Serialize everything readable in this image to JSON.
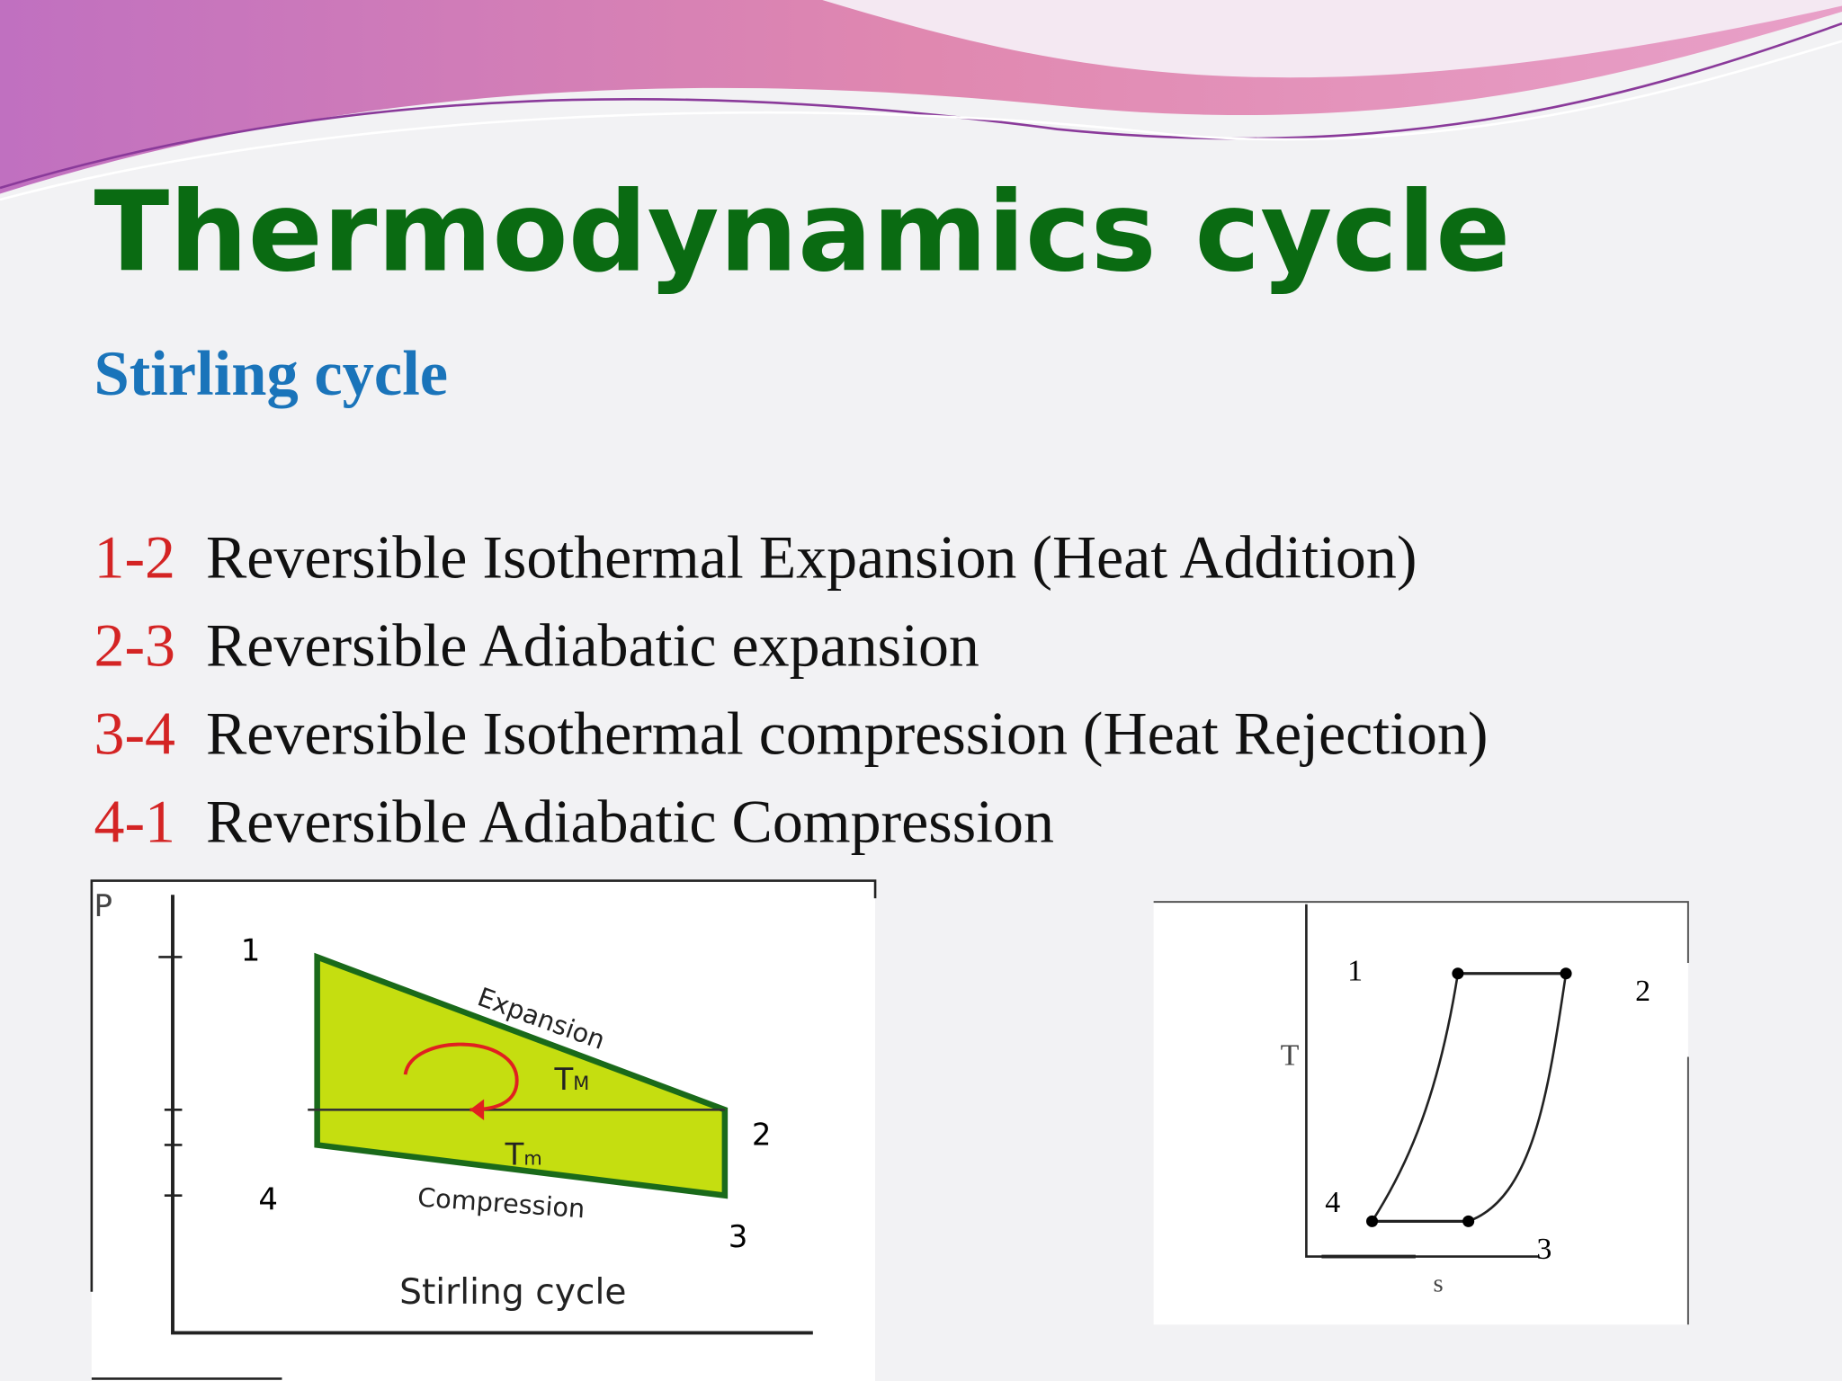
{
  "header": {
    "title": "Thermodynamics cycle",
    "subtitle": "Stirling cycle"
  },
  "processes": [
    {
      "number": "1-2",
      "text": "Reversible Isothermal Expansion (Heat Addition)"
    },
    {
      "number": "2-3",
      "text": "Reversible Adiabatic expansion"
    },
    {
      "number": "3-4",
      "text": "Reversible Isothermal compression (Heat Rejection)"
    },
    {
      "number": "4-1",
      "text": "Reversible Adiabatic Compression"
    }
  ],
  "pv_diagram": {
    "axis": "P",
    "points": [
      "1",
      "2",
      "3",
      "4"
    ],
    "top_label": "Expansion",
    "bottom_label": "Compression",
    "upper_temp": {
      "main": "T",
      "sub": "M"
    },
    "lower_temp": {
      "main": "T",
      "sub": "m"
    },
    "caption": "Stirling cycle"
  },
  "ts_diagram": {
    "y_axis": "T",
    "x_axis": "s",
    "points": [
      "1",
      "2",
      "3",
      "4"
    ]
  }
}
